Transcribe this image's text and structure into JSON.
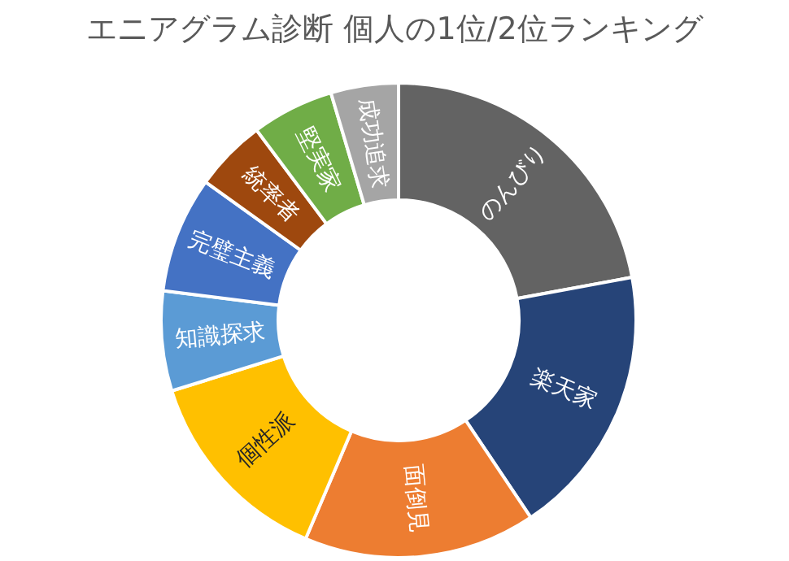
{
  "chart_data": {
    "type": "donut",
    "title": "エニアグラム診断 個人の1位/2位ランキング",
    "categories": [
      "のんびり",
      "楽天家",
      "面倒見",
      "個性派",
      "知識探求",
      "完璧主義",
      "統率者",
      "堅実家",
      "成功追求"
    ],
    "values": [
      22.1,
      18.5,
      15.8,
      13.8,
      6.8,
      7.9,
      4.9,
      5.6,
      4.6
    ],
    "colors": [
      "#636363",
      "#264478",
      "#ed7d31",
      "#ffc000",
      "#5b9bd5",
      "#4472c4",
      "#9e480e",
      "#70ad47",
      "#a5a5a5"
    ],
    "legend": false
  }
}
